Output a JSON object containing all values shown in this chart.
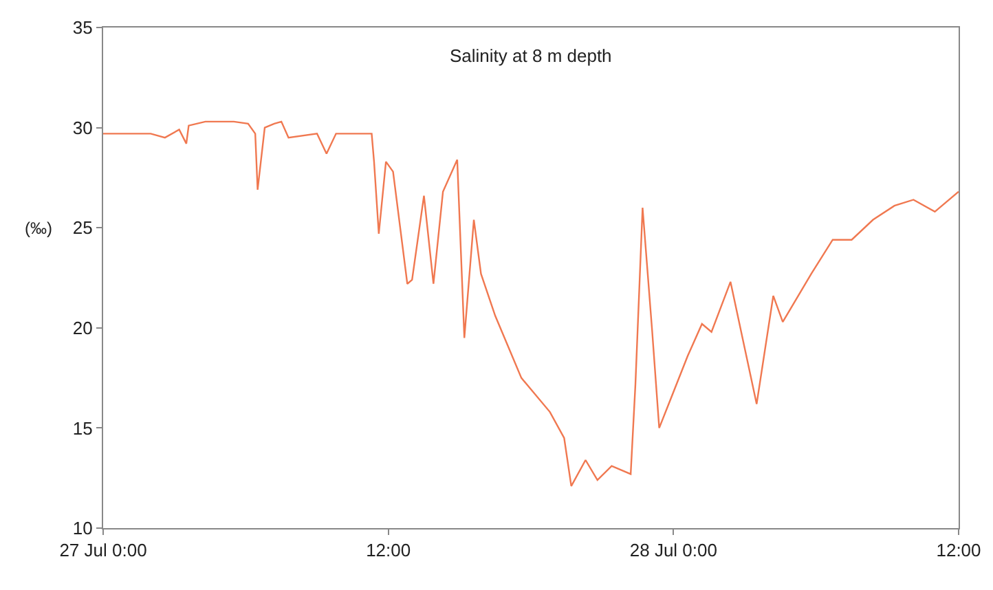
{
  "chart_data": {
    "type": "line",
    "title": "Salinity at 8 m depth",
    "ylabel": "(‰)",
    "x": [
      "--07-27T00:00",
      "--07-27T02:00",
      "--07-27T02:36",
      "--07-27T03:12",
      "--07-27T03:30",
      "--07-27T03:36",
      "--07-27T04:18",
      "--07-27T05:30",
      "--07-27T06:06",
      "--07-27T06:24",
      "--07-27T06:30",
      "--07-27T06:48",
      "--07-27T07:12",
      "--07-27T07:30",
      "--07-27T07:48",
      "--07-27T09:00",
      "--07-27T09:24",
      "--07-27T09:48",
      "--07-27T11:18",
      "--07-27T11:24",
      "--07-27T11:36",
      "--07-27T11:54",
      "--07-27T12:12",
      "--07-27T12:48",
      "--07-27T13:00",
      "--07-27T13:30",
      "--07-27T13:54",
      "--07-27T14:18",
      "--07-27T14:54",
      "--07-27T15:12",
      "--07-27T15:36",
      "--07-27T15:54",
      "--07-27T16:30",
      "--07-27T17:36",
      "--07-27T18:48",
      "--07-27T19:24",
      "--07-27T19:42",
      "--07-27T20:18",
      "--07-27T20:48",
      "--07-27T21:24",
      "--07-27T22:12",
      "--07-27T22:24",
      "--07-27T22:42",
      "--07-27T23:06",
      "--07-27T23:24",
      "--07-27T23:54",
      "--07-28T00:36",
      "--07-28T01:12",
      "--07-28T01:36",
      "--07-28T02:24",
      "--07-28T03:30",
      "--07-28T04:12",
      "--07-28T04:36",
      "--07-28T05:48",
      "--07-28T06:42",
      "--07-28T07:30",
      "--07-28T08:24",
      "--07-28T09:18",
      "--07-28T10:06",
      "--07-28T11:00",
      "--07-28T12:00"
    ],
    "series": [
      {
        "color": "#f07850",
        "values": [
          29.7,
          29.7,
          29.5,
          29.9,
          29.2,
          30.1,
          30.3,
          30.3,
          30.2,
          29.7,
          26.9,
          30.0,
          30.2,
          30.3,
          29.5,
          29.7,
          28.7,
          29.7,
          29.7,
          28.3,
          24.7,
          28.3,
          27.8,
          22.2,
          22.4,
          26.6,
          22.2,
          26.8,
          28.4,
          19.5,
          25.4,
          22.7,
          20.6,
          17.5,
          15.8,
          14.5,
          12.1,
          13.4,
          12.4,
          13.1,
          12.7,
          17.2,
          26.0,
          19.9,
          15.0,
          16.5,
          18.6,
          20.2,
          19.8,
          22.3,
          16.2,
          21.6,
          20.3,
          22.7,
          24.4,
          24.4,
          25.4,
          26.1,
          26.4,
          25.8,
          26.8
        ]
      }
    ],
    "xlim": [
      "--07-27T00:00",
      "--07-28T12:00"
    ],
    "xticks": [
      {
        "value": "--07-27T00:00",
        "label": "27 Jul 0:00"
      },
      {
        "value": "--07-27T12:00",
        "label": "12:00"
      },
      {
        "value": "--07-28T00:00",
        "label": "28 Jul 0:00"
      },
      {
        "value": "--07-28T12:00",
        "label": "12:00"
      }
    ],
    "ylim": [
      10,
      35
    ],
    "yticks": [
      10,
      15,
      20,
      25,
      30,
      35
    ],
    "grid": false,
    "marker": "none",
    "line_style": "solid"
  }
}
